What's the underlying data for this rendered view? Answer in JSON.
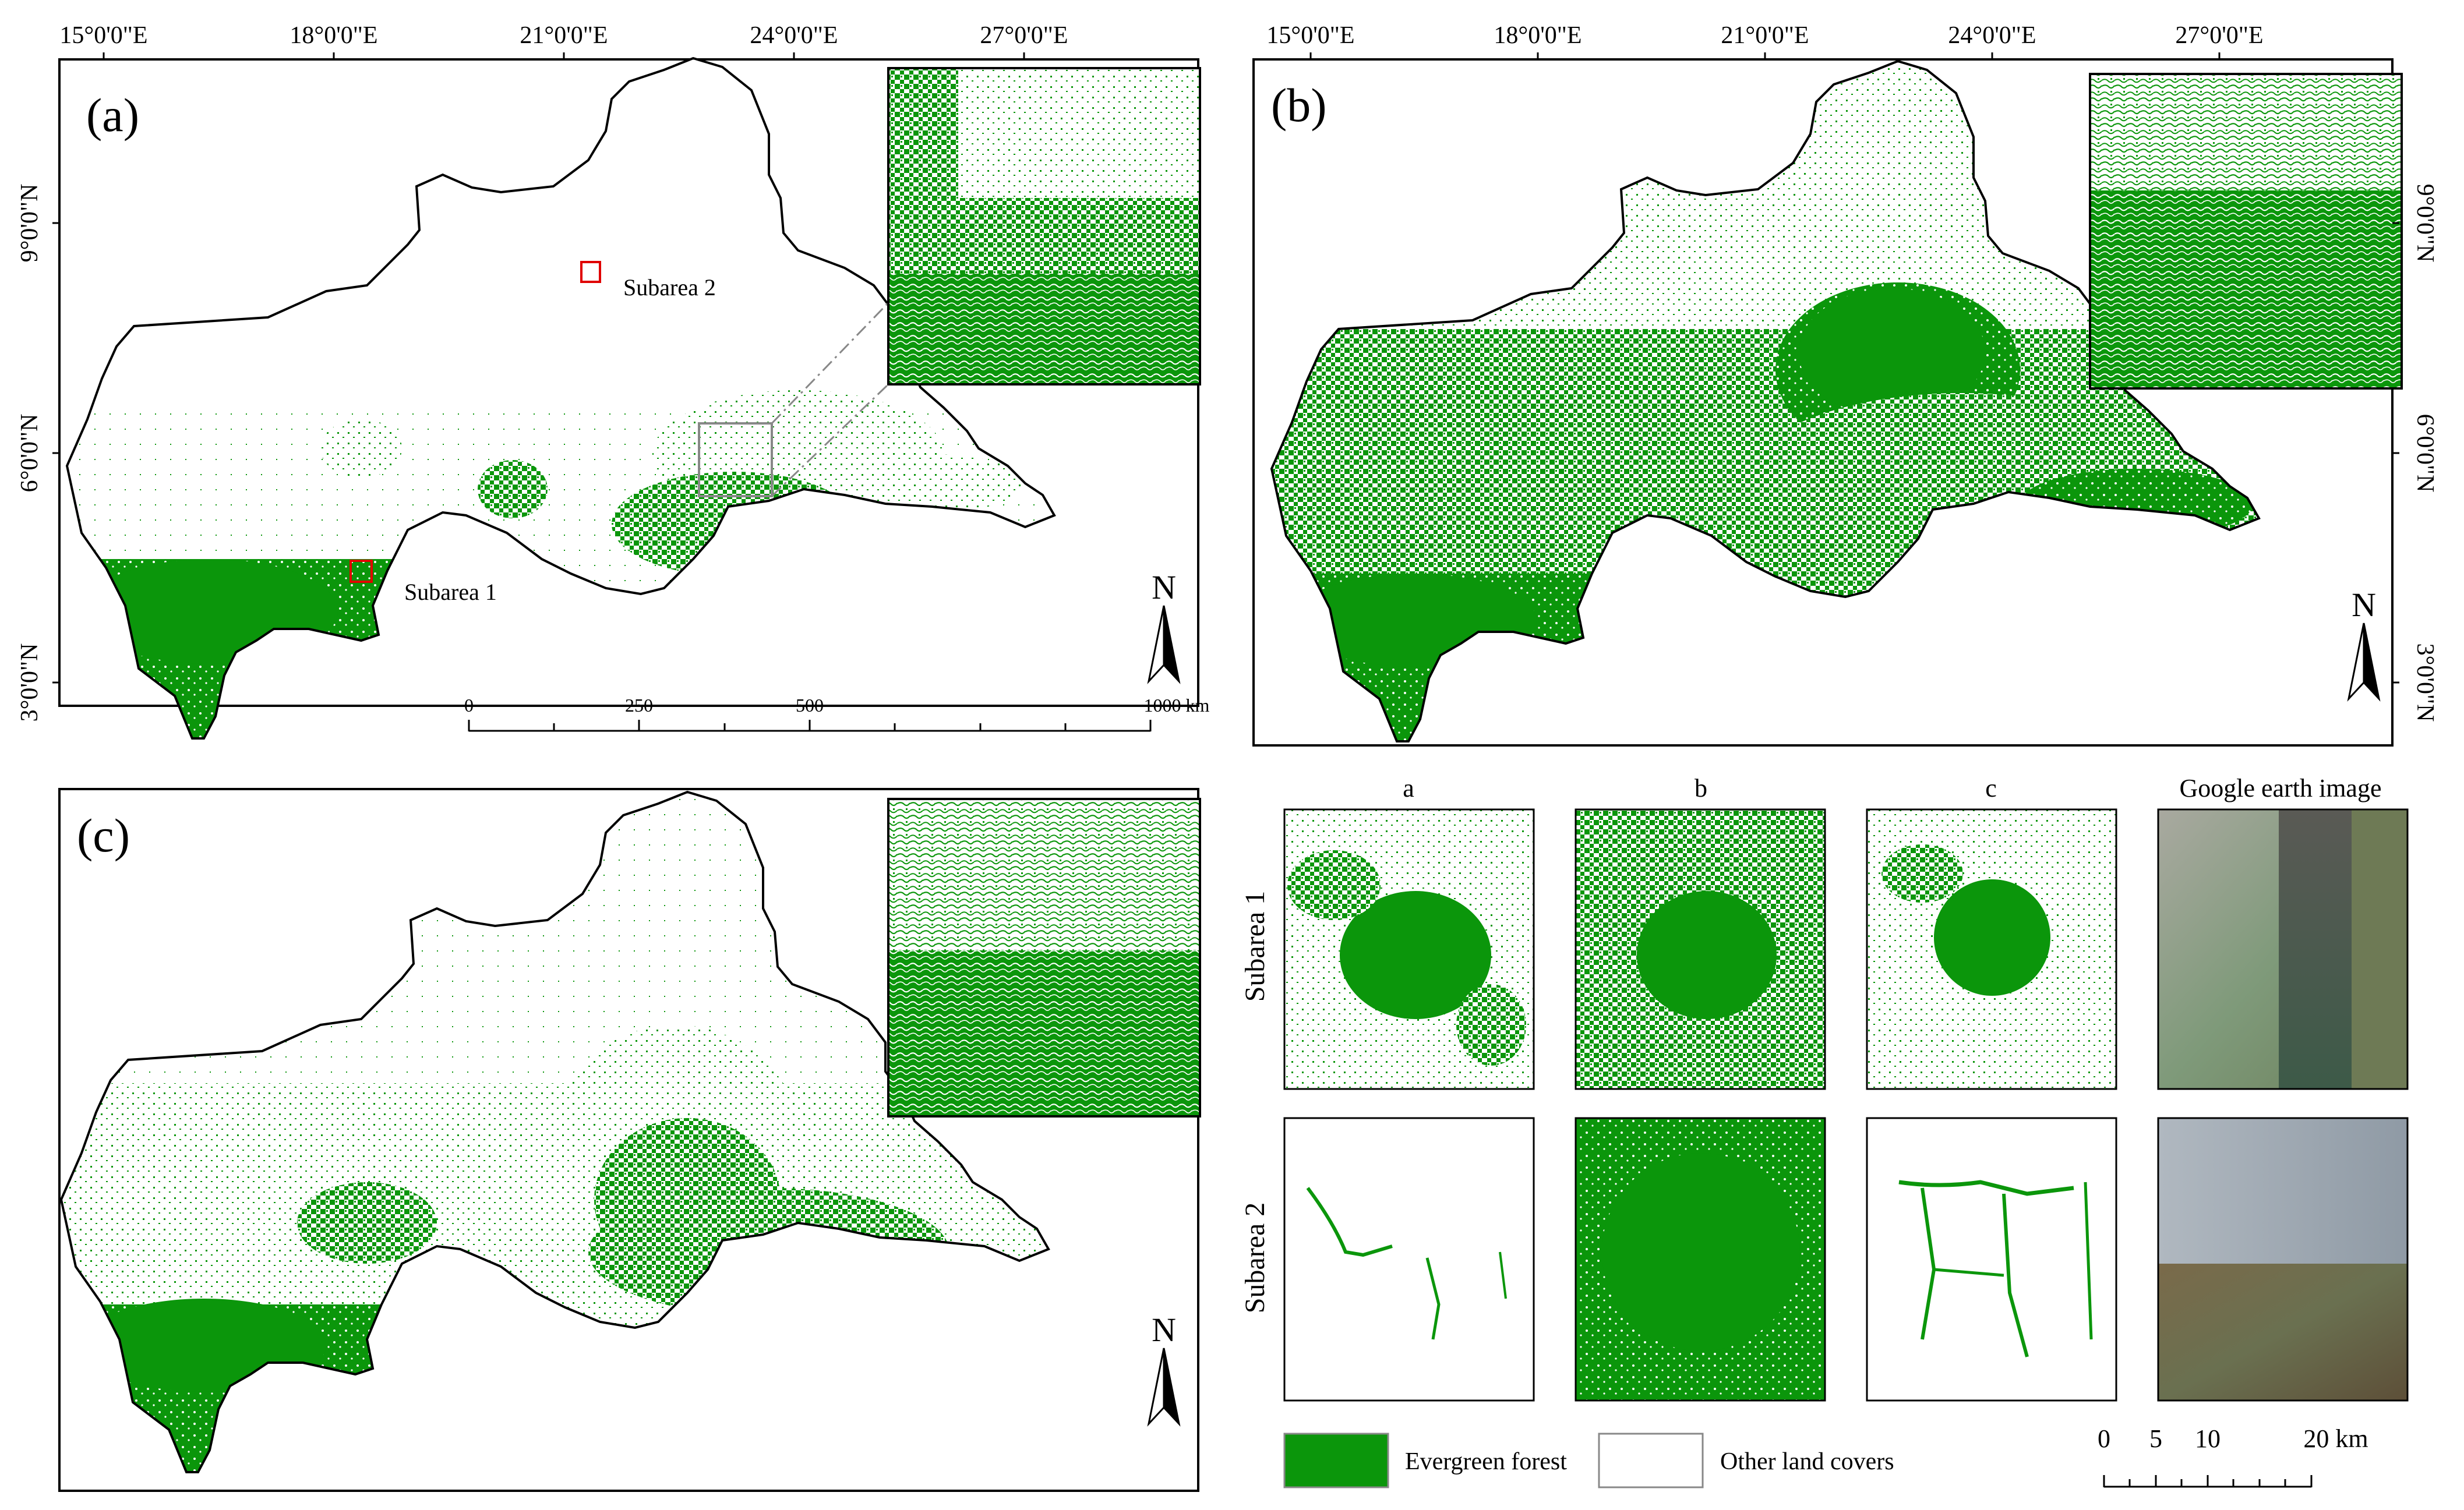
{
  "colors": {
    "forest": "#0b960b",
    "forest_light": "#5cbf5c",
    "boundary": "#000000",
    "subarea_box": "#e00000",
    "zoom_box": "#888888",
    "frame": "#000000",
    "background": "#ffffff"
  },
  "panel_a": {
    "label": "(a)",
    "lon_ticks": [
      "15°0'0\"E",
      "18°0'0\"E",
      "21°0'0\"E",
      "24°0'0\"E",
      "27°0'0\"E"
    ],
    "lat_ticks": [
      "9°0'0\"N",
      "6°0'0\"N",
      "3°0'0\"N"
    ],
    "subarea1_label": "Subarea 1",
    "subarea2_label": "Subarea 2",
    "north_label": "N",
    "scale_labels": [
      "0",
      "250",
      "500",
      "1000 km"
    ]
  },
  "panel_b": {
    "label": "(b)",
    "lon_ticks": [
      "15°0'0\"E",
      "18°0'0\"E",
      "21°0'0\"E",
      "24°0'0\"E",
      "27°0'0\"E"
    ],
    "lat_ticks": [
      "9°0'0\"N",
      "6°0'0\"N",
      "3°0'0\"N"
    ],
    "north_label": "N"
  },
  "panel_c": {
    "label": "(c)",
    "north_label": "N"
  },
  "comparison": {
    "columns": [
      "a",
      "b",
      "c",
      "Google earth image"
    ],
    "rows": [
      "Subarea 1",
      "Subarea 2"
    ]
  },
  "legend": {
    "forest_label": "Evergreen forest",
    "other_label": "Other land covers"
  },
  "small_scale": {
    "labels": [
      "0",
      "5",
      "10",
      "20 km"
    ]
  }
}
